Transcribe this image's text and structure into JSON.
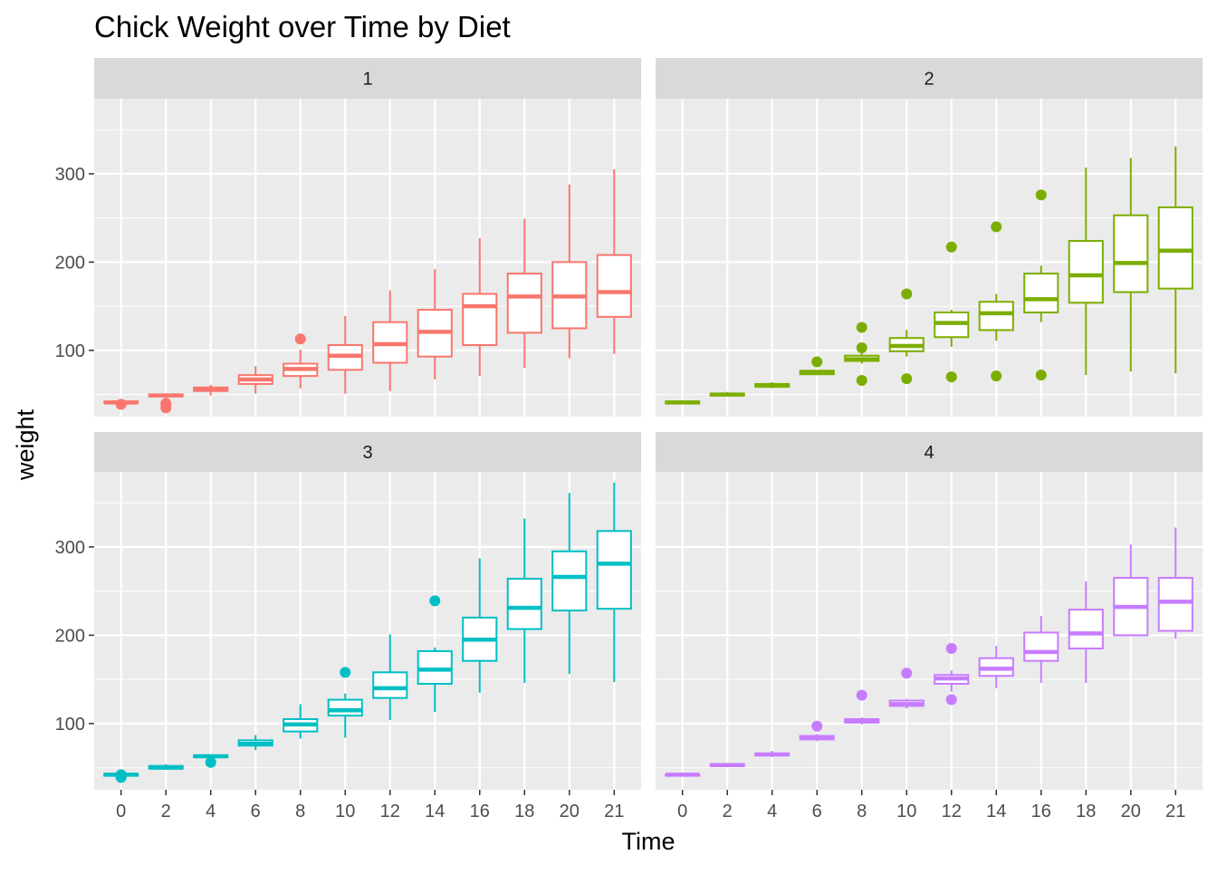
{
  "chart_data": {
    "type": "box",
    "title": "Chick Weight over Time by Diet",
    "xlabel": "Time",
    "ylabel": "weight",
    "categories": [
      "0",
      "2",
      "4",
      "6",
      "8",
      "10",
      "12",
      "14",
      "16",
      "18",
      "20",
      "21"
    ],
    "y_ticks": [
      100,
      200,
      300
    ],
    "ylim": [
      25,
      385
    ],
    "grid": true,
    "legend": "none",
    "facets": [
      {
        "label": "1",
        "color": "#F8766D",
        "boxes": [
          {
            "x": "0",
            "low": 39,
            "q1": 41,
            "median": 41,
            "q3": 42,
            "high": 43,
            "outliers": [
              39
            ]
          },
          {
            "x": "2",
            "low": 44,
            "q1": 48,
            "median": 49,
            "q3": 50,
            "high": 51,
            "outliers": [
              35,
              39,
              40
            ]
          },
          {
            "x": "4",
            "low": 49,
            "q1": 54,
            "median": 56,
            "q3": 58,
            "high": 61,
            "outliers": []
          },
          {
            "x": "6",
            "low": 51,
            "q1": 62,
            "median": 67,
            "q3": 72,
            "high": 82,
            "outliers": []
          },
          {
            "x": "8",
            "low": 57,
            "q1": 71,
            "median": 79,
            "q3": 85,
            "high": 101,
            "outliers": [
              113
            ]
          },
          {
            "x": "10",
            "low": 51,
            "q1": 78,
            "median": 94,
            "q3": 106,
            "high": 139,
            "outliers": []
          },
          {
            "x": "12",
            "low": 54,
            "q1": 86,
            "median": 107,
            "q3": 132,
            "high": 168,
            "outliers": []
          },
          {
            "x": "14",
            "low": 67,
            "q1": 93,
            "median": 121,
            "q3": 146,
            "high": 192,
            "outliers": []
          },
          {
            "x": "16",
            "low": 71,
            "q1": 106,
            "median": 150,
            "q3": 164,
            "high": 227,
            "outliers": []
          },
          {
            "x": "18",
            "low": 80,
            "q1": 120,
            "median": 161,
            "q3": 187,
            "high": 249,
            "outliers": []
          },
          {
            "x": "20",
            "low": 91,
            "q1": 125,
            "median": 161,
            "q3": 200,
            "high": 288,
            "outliers": []
          },
          {
            "x": "21",
            "low": 96,
            "q1": 138,
            "median": 166,
            "q3": 208,
            "high": 305,
            "outliers": []
          }
        ]
      },
      {
        "label": "2",
        "color": "#7CAE00",
        "boxes": [
          {
            "x": "0",
            "low": 39,
            "q1": 40,
            "median": 41,
            "q3": 42,
            "high": 43,
            "outliers": []
          },
          {
            "x": "2",
            "low": 48,
            "q1": 49,
            "median": 50,
            "q3": 51,
            "high": 53,
            "outliers": []
          },
          {
            "x": "4",
            "low": 57,
            "q1": 59,
            "median": 60,
            "q3": 62,
            "high": 64,
            "outliers": []
          },
          {
            "x": "6",
            "low": 72,
            "q1": 73,
            "median": 75,
            "q3": 77,
            "high": 78,
            "outliers": [
              87
            ]
          },
          {
            "x": "8",
            "low": 85,
            "q1": 88,
            "median": 90,
            "q3": 94,
            "high": 99,
            "outliers": [
              66,
              103,
              126
            ]
          },
          {
            "x": "10",
            "low": 93,
            "q1": 99,
            "median": 105,
            "q3": 114,
            "high": 123,
            "outliers": [
              68,
              164
            ]
          },
          {
            "x": "12",
            "low": 104,
            "q1": 115,
            "median": 131,
            "q3": 143,
            "high": 146,
            "outliers": [
              70,
              217
            ]
          },
          {
            "x": "14",
            "low": 111,
            "q1": 123,
            "median": 142,
            "q3": 155,
            "high": 164,
            "outliers": [
              71,
              240
            ]
          },
          {
            "x": "16",
            "low": 132,
            "q1": 143,
            "median": 158,
            "q3": 187,
            "high": 196,
            "outliers": [
              72,
              276
            ]
          },
          {
            "x": "18",
            "low": 72,
            "q1": 154,
            "median": 185,
            "q3": 224,
            "high": 307,
            "outliers": []
          },
          {
            "x": "20",
            "low": 76,
            "q1": 166,
            "median": 199,
            "q3": 253,
            "high": 318,
            "outliers": []
          },
          {
            "x": "21",
            "low": 74,
            "q1": 170,
            "median": 213,
            "q3": 262,
            "high": 331,
            "outliers": []
          }
        ]
      },
      {
        "label": "3",
        "color": "#00BFC4",
        "boxes": [
          {
            "x": "0",
            "low": 39,
            "q1": 41,
            "median": 42,
            "q3": 43,
            "high": 44,
            "outliers": [
              39,
              40,
              42
            ]
          },
          {
            "x": "2",
            "low": 48,
            "q1": 49,
            "median": 50,
            "q3": 52,
            "high": 54,
            "outliers": []
          },
          {
            "x": "4",
            "low": 60,
            "q1": 62,
            "median": 63,
            "q3": 64,
            "high": 65,
            "outliers": [
              56
            ]
          },
          {
            "x": "6",
            "low": 70,
            "q1": 75,
            "median": 77,
            "q3": 81,
            "high": 87,
            "outliers": []
          },
          {
            "x": "8",
            "low": 83,
            "q1": 91,
            "median": 99,
            "q3": 105,
            "high": 122,
            "outliers": []
          },
          {
            "x": "10",
            "low": 84,
            "q1": 109,
            "median": 115,
            "q3": 127,
            "high": 134,
            "outliers": [
              158
            ]
          },
          {
            "x": "12",
            "low": 104,
            "q1": 129,
            "median": 140,
            "q3": 158,
            "high": 201,
            "outliers": []
          },
          {
            "x": "14",
            "low": 113,
            "q1": 145,
            "median": 161,
            "q3": 182,
            "high": 186,
            "outliers": [
              239
            ]
          },
          {
            "x": "16",
            "low": 135,
            "q1": 171,
            "median": 195,
            "q3": 220,
            "high": 287,
            "outliers": []
          },
          {
            "x": "18",
            "low": 146,
            "q1": 207,
            "median": 231,
            "q3": 264,
            "high": 332,
            "outliers": []
          },
          {
            "x": "20",
            "low": 156,
            "q1": 228,
            "median": 266,
            "q3": 295,
            "high": 361,
            "outliers": []
          },
          {
            "x": "21",
            "low": 147,
            "q1": 230,
            "median": 281,
            "q3": 318,
            "high": 373,
            "outliers": []
          }
        ]
      },
      {
        "label": "4",
        "color": "#C77CFF",
        "boxes": [
          {
            "x": "0",
            "low": 40,
            "q1": 41,
            "median": 42,
            "q3": 42,
            "high": 43,
            "outliers": []
          },
          {
            "x": "2",
            "low": 51,
            "q1": 52,
            "median": 53,
            "q3": 54,
            "high": 55,
            "outliers": []
          },
          {
            "x": "4",
            "low": 62,
            "q1": 64,
            "median": 65,
            "q3": 66,
            "high": 69,
            "outliers": []
          },
          {
            "x": "6",
            "low": 80,
            "q1": 82,
            "median": 84,
            "q3": 86,
            "high": 88,
            "outliers": [
              97
            ]
          },
          {
            "x": "8",
            "low": 99,
            "q1": 101,
            "median": 103,
            "q3": 105,
            "high": 107,
            "outliers": [
              132
            ]
          },
          {
            "x": "10",
            "low": 117,
            "q1": 120,
            "median": 122,
            "q3": 126,
            "high": 128,
            "outliers": [
              157
            ]
          },
          {
            "x": "12",
            "low": 136,
            "q1": 145,
            "median": 151,
            "q3": 155,
            "high": 160,
            "outliers": [
              127,
              185
            ]
          },
          {
            "x": "14",
            "low": 140,
            "q1": 154,
            "median": 162,
            "q3": 174,
            "high": 188,
            "outliers": []
          },
          {
            "x": "16",
            "low": 146,
            "q1": 171,
            "median": 181,
            "q3": 203,
            "high": 222,
            "outliers": []
          },
          {
            "x": "18",
            "low": 146,
            "q1": 185,
            "median": 202,
            "q3": 229,
            "high": 261,
            "outliers": []
          },
          {
            "x": "20",
            "low": 199,
            "q1": 200,
            "median": 232,
            "q3": 265,
            "high": 303,
            "outliers": []
          },
          {
            "x": "21",
            "low": 196,
            "q1": 205,
            "median": 238,
            "q3": 265,
            "high": 322,
            "outliers": []
          }
        ]
      }
    ]
  }
}
